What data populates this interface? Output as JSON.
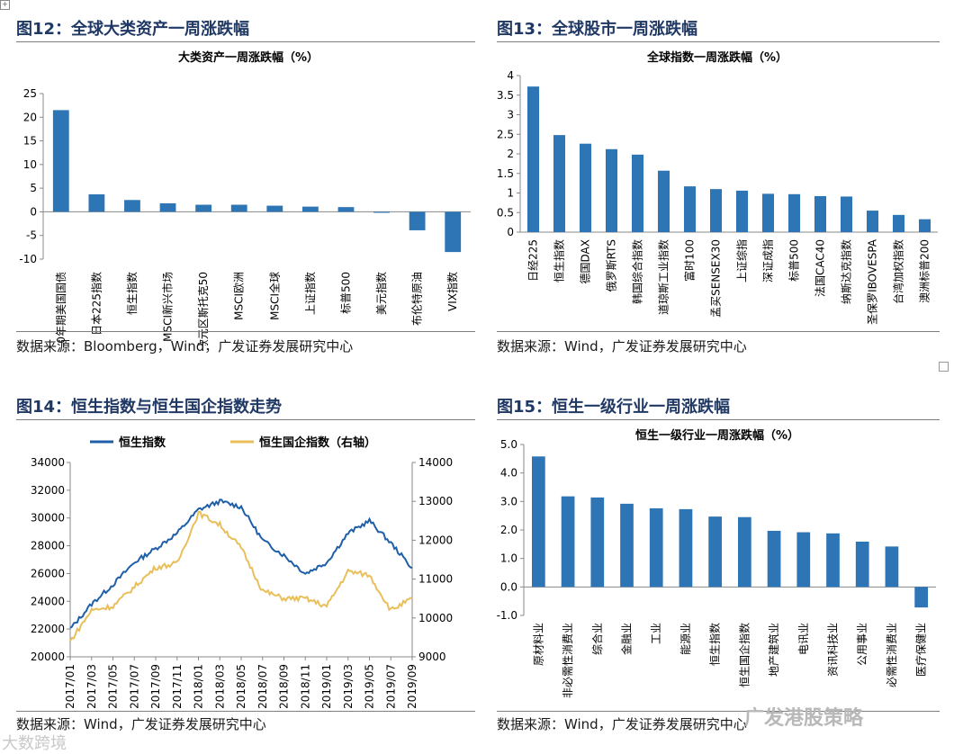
{
  "fig12": {
    "title": "图12：全球大类资产一周涨跌幅",
    "source": "数据来源：Bloomberg，Wind，广发证券发展研究中心",
    "chart_data": {
      "type": "bar",
      "title": "大类资产一周涨跌幅（%）",
      "categories": [
        "10年期美国国债",
        "日本225指数",
        "恒生指数",
        "MSCI新兴市场",
        "欧元区斯托克50",
        "MSCI欧洲",
        "MSCI全球",
        "上证指数",
        "标普500",
        "美元指数",
        "布伦特原油",
        "VIX指数"
      ],
      "values": [
        21.5,
        3.7,
        2.5,
        1.8,
        1.5,
        1.5,
        1.3,
        1.1,
        1.0,
        -0.2,
        -3.9,
        -8.5
      ],
      "ylim": [
        -10,
        25
      ],
      "yticks": [
        -10,
        -5,
        0,
        5,
        10,
        15,
        20,
        25
      ],
      "color": "#2e75b6"
    }
  },
  "fig13": {
    "title": "图13：全球股市一周涨跌幅",
    "source": "数据来源：Wind，广发证券发展研究中心",
    "chart_data": {
      "type": "bar",
      "title": "全球指数一周涨跌幅（%）",
      "categories": [
        "日经225",
        "恒生指数",
        "德国DAX",
        "俄罗斯RTS",
        "韩国综合指数",
        "道琼斯工业指数",
        "富时100",
        "孟买SENSEX30",
        "上证综指",
        "深证成指",
        "标普500",
        "法国CAC40",
        "纳斯达克指数",
        "圣保罗IBOVESPA",
        "台湾加权指数",
        "澳洲标普200"
      ],
      "values": [
        3.72,
        2.48,
        2.26,
        2.12,
        1.98,
        1.57,
        1.17,
        1.1,
        1.06,
        0.98,
        0.97,
        0.92,
        0.91,
        0.55,
        0.44,
        0.33
      ],
      "ylim": [
        0,
        4
      ],
      "yticks": [
        0,
        0.5,
        1,
        1.5,
        2,
        2.5,
        3,
        3.5,
        4
      ],
      "color": "#2e75b6"
    }
  },
  "fig14": {
    "title": "图14：恒生指数与恒生国企指数走势",
    "source": "数据来源：Wind，广发证券发展研究中心",
    "chart_data": {
      "type": "line",
      "x": [
        "2017/01",
        "2017/03",
        "2017/05",
        "2017/07",
        "2017/09",
        "2017/11",
        "2018/01",
        "2018/03",
        "2018/05",
        "2018/07",
        "2018/09",
        "2018/11",
        "2019/01",
        "2019/03",
        "2019/05",
        "2019/07",
        "2019/09"
      ],
      "ylim": [
        20000,
        34000
      ],
      "yticks": [
        20000,
        22000,
        24000,
        26000,
        28000,
        30000,
        32000,
        34000
      ],
      "y2lim": [
        9000,
        14000
      ],
      "y2ticks": [
        9000,
        10000,
        11000,
        12000,
        13000,
        14000
      ],
      "series": [
        {
          "name": "恒生指数",
          "axis": "left",
          "color": "#1f5fa8",
          "values": [
            22000,
            23800,
            25200,
            26800,
            27800,
            28900,
            30600,
            31200,
            30800,
            28400,
            27300,
            26000,
            26800,
            28900,
            29800,
            28200,
            26400
          ]
        },
        {
          "name": "恒生国企指数（右轴）",
          "axis": "right",
          "color": "#e8bf5a",
          "values": [
            9400,
            10200,
            10300,
            10800,
            11300,
            11400,
            12700,
            12400,
            11800,
            10700,
            10500,
            10500,
            10300,
            11200,
            11100,
            10200,
            10500
          ]
        }
      ]
    }
  },
  "fig15": {
    "title": "图15：恒生一级行业一周涨跌幅",
    "source": "数据来源：Wind，广发证券发展研究中心",
    "chart_data": {
      "type": "bar",
      "title": "恒生一级行业一周涨跌幅（%）",
      "categories": [
        "原材料业",
        "非必需性消费业",
        "综合业",
        "金融业",
        "工业",
        "能源业",
        "恒生指数",
        "恒生国企指数",
        "地产建筑业",
        "电讯业",
        "资讯科技业",
        "公用事业",
        "必需性消费业",
        "医疗保健业"
      ],
      "values": [
        4.58,
        3.18,
        3.14,
        2.92,
        2.76,
        2.73,
        2.47,
        2.45,
        1.97,
        1.92,
        1.88,
        1.59,
        1.42,
        -0.72
      ],
      "ylim": [
        -1,
        5
      ],
      "yticks": [
        "-1.0",
        "0.0",
        "1.0",
        "2.0",
        "3.0",
        "4.0",
        "5.0"
      ],
      "color": "#2e75b6"
    }
  },
  "watermark": {
    "brand": "广发港股策略",
    "site": "大数跨境"
  }
}
